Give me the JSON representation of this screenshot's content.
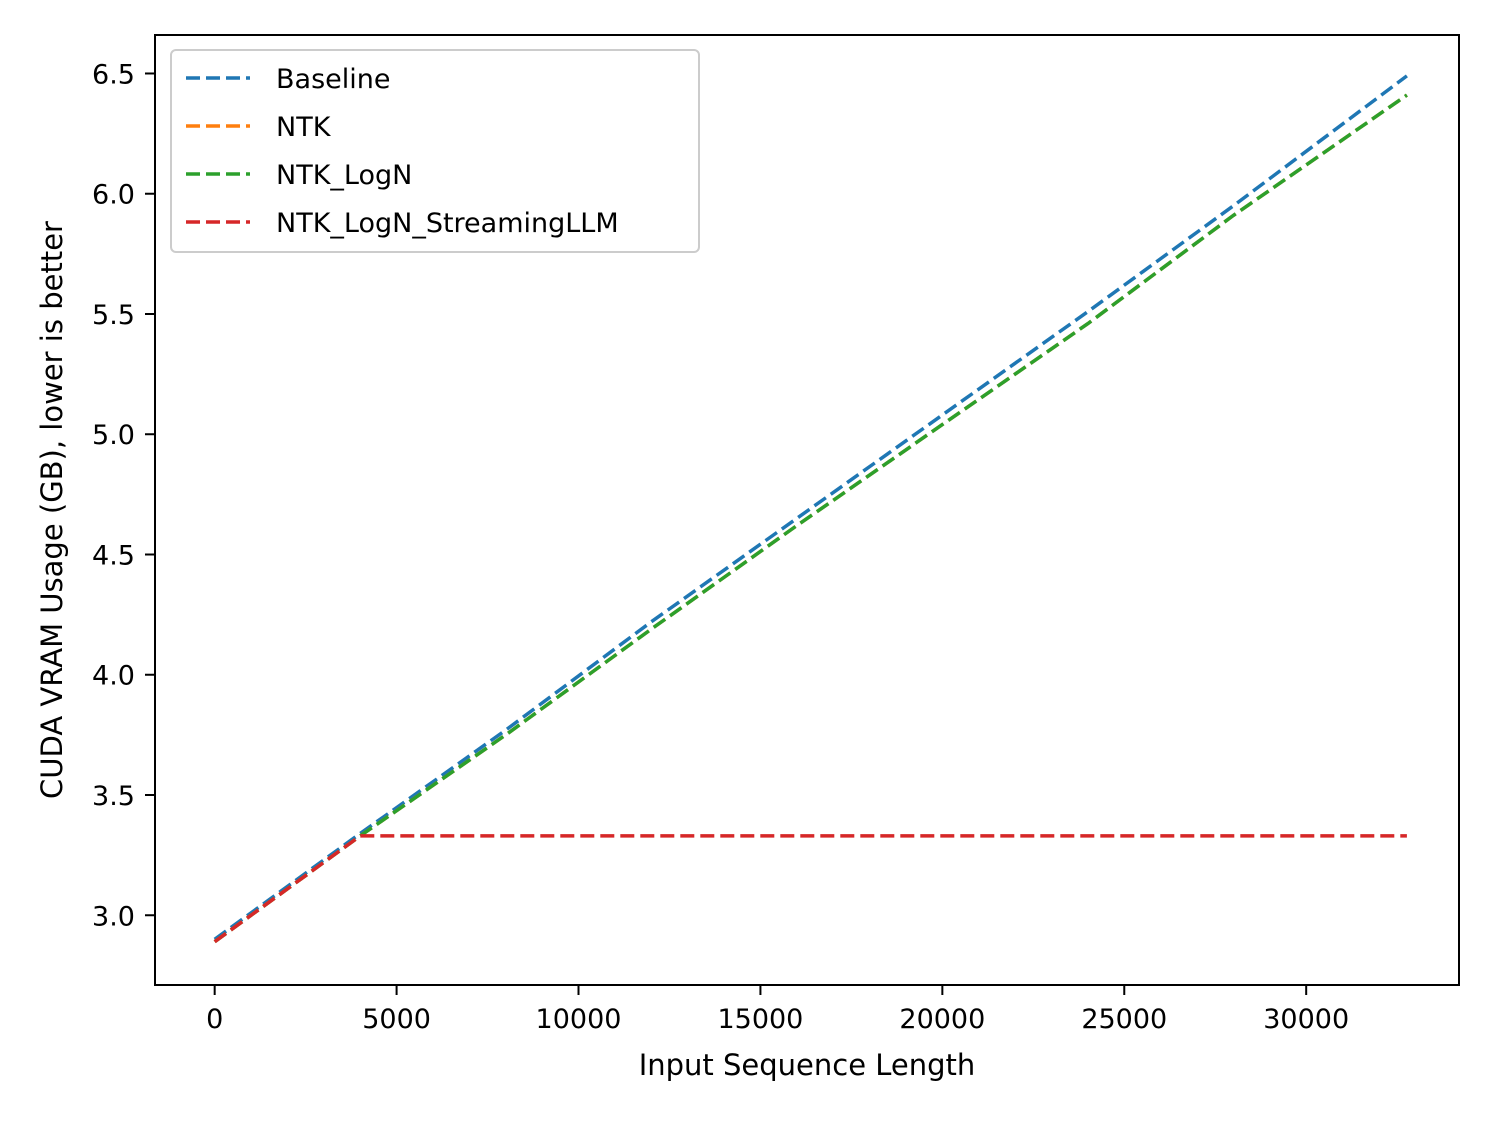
{
  "chart_data": {
    "type": "line",
    "title": "",
    "xlabel": "Input Sequence Length",
    "ylabel": "CUDA VRAM Usage (GB), lower is better",
    "xlim": [
      -1640,
      34200
    ],
    "ylim": [
      2.71,
      6.66
    ],
    "xticks": [
      0,
      5000,
      10000,
      15000,
      20000,
      25000,
      30000
    ],
    "xtick_labels": [
      "0",
      "5000",
      "10000",
      "15000",
      "20000",
      "25000",
      "30000"
    ],
    "yticks": [
      3.0,
      3.5,
      4.0,
      4.5,
      5.0,
      5.5,
      6.0,
      6.5
    ],
    "ytick_labels": [
      "3.0",
      "3.5",
      "4.0",
      "4.5",
      "5.0",
      "5.5",
      "6.0",
      "6.5"
    ],
    "grid": false,
    "legend": "top-left",
    "x": [
      0,
      4000,
      8000,
      12000,
      16000,
      20000,
      24000,
      28000,
      32768
    ],
    "series": [
      {
        "name": "Baseline",
        "color": "#1f77b4",
        "values": [
          2.9,
          3.34,
          3.77,
          4.22,
          4.65,
          5.08,
          5.51,
          5.95,
          6.49
        ]
      },
      {
        "name": "NTK",
        "color": "#ff7f0e",
        "values": [
          2.89,
          3.33,
          3.75,
          4.19,
          4.62,
          5.04,
          5.46,
          5.91,
          6.41
        ]
      },
      {
        "name": "NTK_LogN",
        "color": "#2ca02c",
        "values": [
          2.89,
          3.33,
          3.75,
          4.19,
          4.62,
          5.04,
          5.46,
          5.91,
          6.41
        ]
      },
      {
        "name": "NTK_LogN_StreamingLLM",
        "color": "#d62728",
        "values": [
          2.89,
          3.33,
          3.33,
          3.33,
          3.33,
          3.33,
          3.33,
          3.33,
          3.33
        ]
      }
    ]
  }
}
